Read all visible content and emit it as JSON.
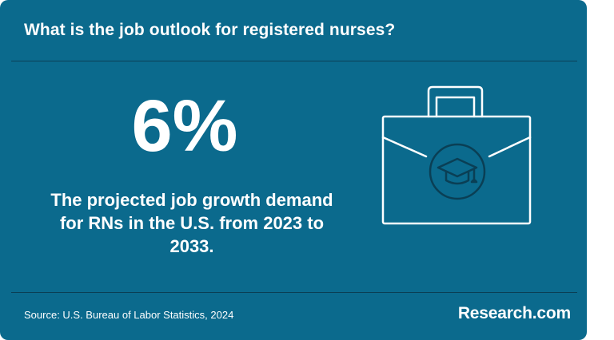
{
  "header": {
    "title": "What is the job outlook for registered nurses?"
  },
  "stat": {
    "value": "6%",
    "description": "The projected job growth demand for RNs in the U.S. from 2023 to 2033."
  },
  "illustration": {
    "icon": "briefcase-with-graduation-cap-icon"
  },
  "footer": {
    "source": "Source: U.S. Bureau of Labor Statistics, 2024",
    "brand": "Research.com"
  },
  "colors": {
    "background": "#0b6a8d",
    "divider": "#0a3f55",
    "text": "#ffffff"
  }
}
